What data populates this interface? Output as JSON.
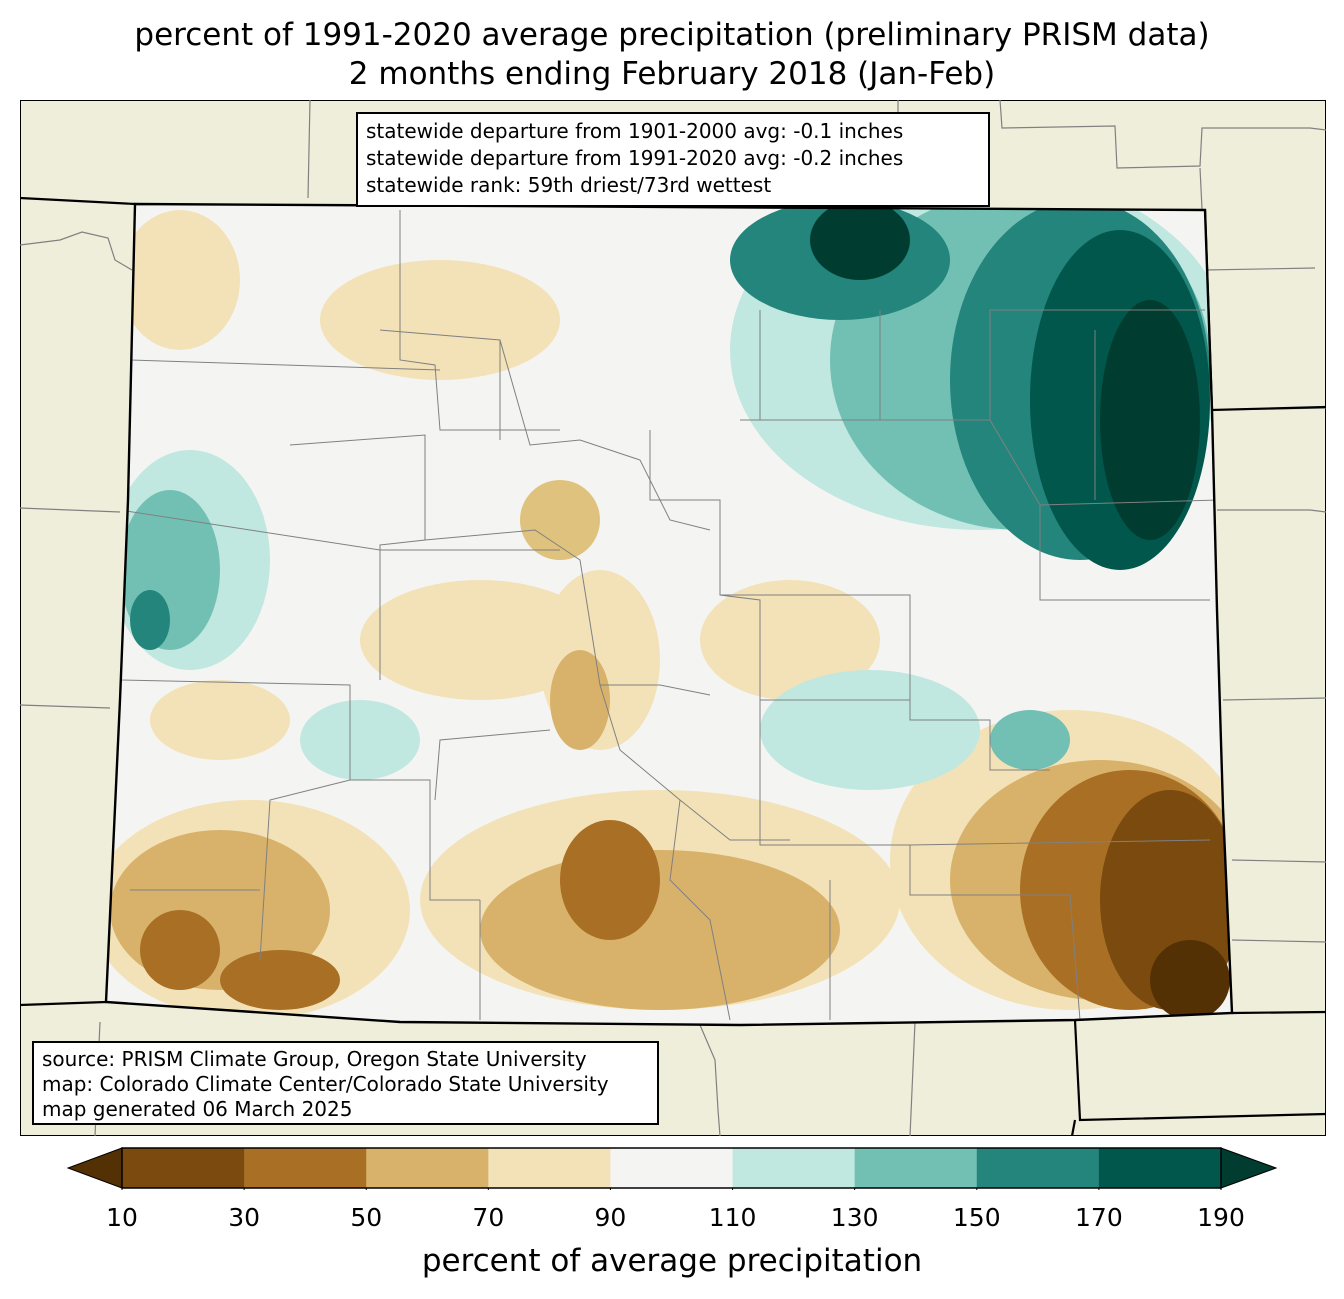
{
  "title": {
    "line1": "percent of 1991-2020 average precipitation (preliminary PRISM data)",
    "line2": "2 months ending February 2018 (Jan-Feb)"
  },
  "stats": {
    "line1": "statewide departure from 1901-2000 avg: -0.1 inches",
    "line2": "statewide departure from 1991-2020 avg: -0.2 inches",
    "line3": "statewide rank: 59th driest/73rd wettest"
  },
  "source": {
    "line1": "source: PRISM Climate Group, Oregon State University",
    "line2": "map: Colorado Climate Center/Colorado State University",
    "line3": "map generated 06 March 2025"
  },
  "colorbar": {
    "label": "percent of average precipitation",
    "ticks": [
      "10",
      "30",
      "50",
      "70",
      "90",
      "110",
      "130",
      "150",
      "170",
      "190"
    ],
    "under_color": "#543005",
    "over_color": "#003c30",
    "colors": [
      "#8c510a",
      "#bf812d",
      "#dfc27d",
      "#f6e8c3",
      "#f5f5f5",
      "#c7eae5",
      "#80cdc1",
      "#35978f",
      "#01665e"
    ],
    "band_colors": [
      "#7a4a0e",
      "#a86f25",
      "#d8b26a",
      "#f3e2b8",
      "#f4f5f3",
      "#c1e7e1",
      "#71c0b3",
      "#23857c",
      "#02574d"
    ]
  },
  "map": {
    "background_color": "#efeedb",
    "state_fill": "#f4f5f3",
    "county_line_color": "#808080",
    "state_line_color": "#000000"
  }
}
